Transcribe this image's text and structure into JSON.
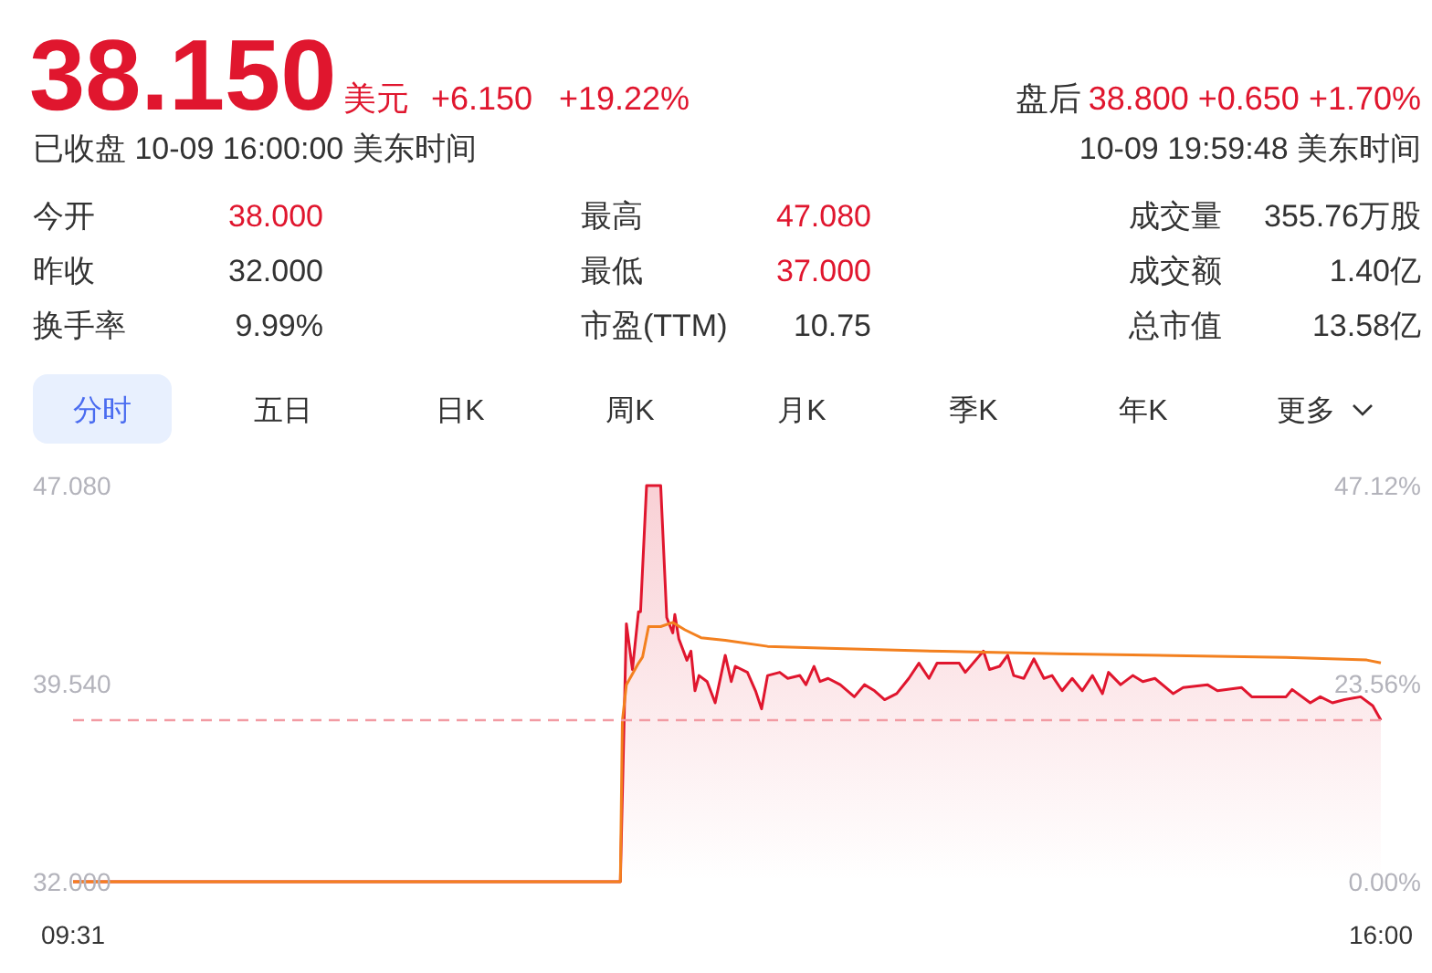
{
  "chart_data": {
    "type": "line",
    "title": "38.150",
    "subtitle": "已收盘 10-09 16:00:00 美东时间",
    "annotations": [
      "美元",
      "+6.150",
      "+19.22%",
      "盘后",
      "38.800 +0.650 +1.70%",
      "10-09 19:59:48 美东时间",
      "今开",
      "38.000",
      "昨收",
      "32.000",
      "换手率",
      "9.99%",
      "最高",
      "47.080",
      "最低",
      "37.000",
      "市盈(TTM)",
      "10.75",
      "成交量",
      "355.76万股",
      "成交额",
      "1.40亿",
      "总市值",
      "13.58亿",
      "分时",
      "五日",
      "日K",
      "周K",
      "月K",
      "季K",
      "年K",
      "更多"
    ],
    "xlim": [
      9.517,
      16
    ],
    "xticks": [
      {
        "value": 9.517,
        "label": "09:31"
      },
      {
        "value": 16,
        "label": "16:00"
      }
    ],
    "ylim": [
      32,
      47.08
    ],
    "yticks": [
      {
        "value": 32,
        "label": "32.000"
      },
      {
        "value": 39.54,
        "label": "39.540"
      },
      {
        "value": 47.08,
        "label": "47.080"
      }
    ],
    "y2lim": [
      0,
      47.12
    ],
    "y2ticks": [
      {
        "value": 0,
        "label": "0.00%"
      },
      {
        "value": 23.56,
        "label": "23.56%"
      },
      {
        "value": 47.12,
        "label": "47.12%"
      }
    ],
    "grid": false,
    "marker": "none",
    "line_style": "solid",
    "ref_lines": [
      {
        "axis": "y",
        "value": 38.15,
        "label": null,
        "color": "#f29ba3",
        "line_style": "dashed"
      }
    ],
    "series": [
      {
        "type": "area",
        "color": "#e0162e",
        "x": [
          9.517,
          12.23,
          12.26,
          12.29,
          12.32,
          12.33,
          12.36,
          12.43,
          12.46,
          12.49,
          12.5,
          12.52,
          12.56,
          12.58,
          12.6,
          12.62,
          12.66,
          12.7,
          12.75,
          12.78,
          12.8,
          12.86,
          12.9,
          12.93,
          12.96,
          13.02,
          13.06,
          13.12,
          13.15,
          13.19,
          13.22,
          13.26,
          13.32,
          13.39,
          13.44,
          13.49,
          13.54,
          13.6,
          13.66,
          13.71,
          13.76,
          13.8,
          13.86,
          13.91,
          13.94,
          14.03,
          14.06,
          14.11,
          14.15,
          14.18,
          14.23,
          14.28,
          14.33,
          14.37,
          14.42,
          14.47,
          14.52,
          14.57,
          14.62,
          14.65,
          14.71,
          14.77,
          14.82,
          14.88,
          14.97,
          15.02,
          15.14,
          15.19,
          15.31,
          15.36,
          15.53,
          15.56,
          15.65,
          15.7,
          15.76,
          15.82,
          15.9,
          15.96,
          16
        ],
        "values": [
          32,
          32,
          41.82,
          40.08,
          42.28,
          42.28,
          47.08,
          47.08,
          42.06,
          41.47,
          42.17,
          41.24,
          40.43,
          40.78,
          39.27,
          39.85,
          39.62,
          38.81,
          40.62,
          39.62,
          40.2,
          39.97,
          39.27,
          38.58,
          39.85,
          39.97,
          39.74,
          39.85,
          39.5,
          40.2,
          39.62,
          39.74,
          39.5,
          39.04,
          39.5,
          39.27,
          38.93,
          39.16,
          39.74,
          40.32,
          39.74,
          40.32,
          40.32,
          40.32,
          39.97,
          40.78,
          40.08,
          40.2,
          40.62,
          39.85,
          39.74,
          40.48,
          39.74,
          39.85,
          39.27,
          39.74,
          39.27,
          39.85,
          39.16,
          39.97,
          39.5,
          39.85,
          39.62,
          39.74,
          39.16,
          39.39,
          39.5,
          39.27,
          39.39,
          39.04,
          39.04,
          39.32,
          38.81,
          39.04,
          38.81,
          38.93,
          39.04,
          38.7,
          38.15
        ]
      },
      {
        "color": "#f3801f",
        "x": [
          9.517,
          12.23,
          12.24,
          12.26,
          12.32,
          12.34,
          12.37,
          12.43,
          12.49,
          12.55,
          12.63,
          12.75,
          12.96,
          13.26,
          13.83,
          14.4,
          14.97,
          15.53,
          15.93,
          16
        ],
        "values": [
          32,
          32,
          38.12,
          39.5,
          40.32,
          40.55,
          41.71,
          41.71,
          41.87,
          41.59,
          41.29,
          41.19,
          40.96,
          40.89,
          40.77,
          40.68,
          40.61,
          40.54,
          40.44,
          40.33
        ]
      }
    ]
  }
}
